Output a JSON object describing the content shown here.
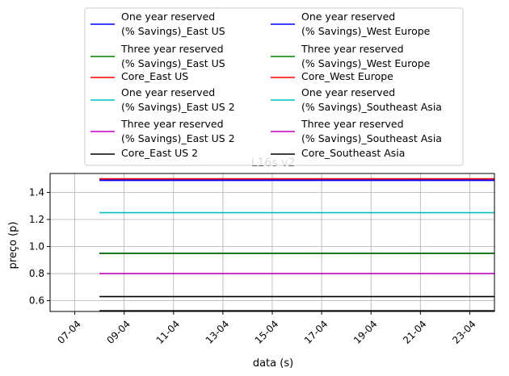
{
  "chart_data": {
    "type": "line",
    "title": "L16s v2",
    "xlabel": "data (s)",
    "ylabel": "preço (p)",
    "xlim": [
      "2023-04-06",
      "2023-04-24"
    ],
    "ylim": [
      0.52,
      1.54
    ],
    "x": [
      "2023-04-08",
      "2023-04-24"
    ],
    "x_ticks": [
      "07-04",
      "09-04",
      "11-04",
      "13-04",
      "15-04",
      "17-04",
      "19-04",
      "21-04",
      "23-04"
    ],
    "x_tick_dates": [
      "2023-04-07",
      "2023-04-09",
      "2023-04-11",
      "2023-04-13",
      "2023-04-15",
      "2023-04-17",
      "2023-04-19",
      "2023-04-21",
      "2023-04-23"
    ],
    "y_ticks": [
      "0.6",
      "0.8",
      "1.0",
      "1.2",
      "1.4"
    ],
    "y_tick_values": [
      0.6,
      0.8,
      1.0,
      1.2,
      1.4
    ],
    "grid": true,
    "legend_placement": "top-center",
    "series": [
      {
        "name": "One year reserved\n(% Savings)_East US",
        "color": "#0000ff",
        "values": [
          1.49,
          1.49
        ]
      },
      {
        "name": "Three year reserved\n(% Savings)_East US",
        "color": "#008000",
        "values": [
          0.95,
          0.95
        ]
      },
      {
        "name": "Core_East US",
        "color": "#ff0000",
        "values": [
          1.5,
          1.5
        ]
      },
      {
        "name": "One year reserved\n(% Savings)_East US 2",
        "color": "#00bfbf",
        "values": [
          1.5,
          1.5
        ]
      },
      {
        "name": "Three year reserved\n(% Savings)_East US 2",
        "color": "#bf00bf",
        "values": [
          0.95,
          0.95
        ]
      },
      {
        "name": "Core_East US 2",
        "color": "#000000",
        "values": [
          0.63,
          0.63
        ]
      },
      {
        "name": "One year reserved\n(% Savings)_West Europe",
        "color": "#0000ff",
        "values": [
          1.49,
          1.49
        ]
      },
      {
        "name": "Three year reserved\n(% Savings)_West Europe",
        "color": "#008000",
        "values": [
          0.95,
          0.95
        ]
      },
      {
        "name": "Core_West Europe",
        "color": "#ff0000",
        "values": [
          1.5,
          1.5
        ]
      },
      {
        "name": "One year reserved\n(% Savings)_Southeast Asia",
        "color": "#00bfbf",
        "values": [
          1.25,
          1.25
        ]
      },
      {
        "name": "Three year reserved\n(% Savings)_Southeast Asia",
        "color": "#bf00bf",
        "values": [
          0.8,
          0.8
        ]
      },
      {
        "name": "Core_Southeast Asia",
        "color": "#000000",
        "values": [
          0.525,
          0.525
        ]
      }
    ]
  }
}
